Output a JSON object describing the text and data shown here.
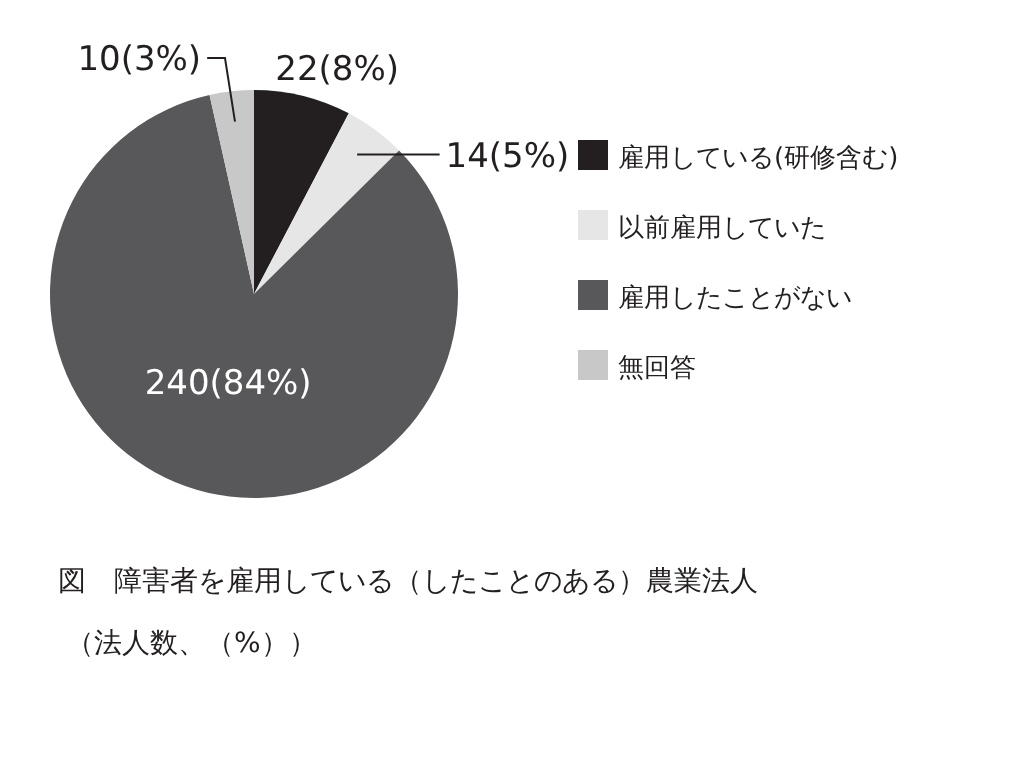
{
  "chart_data": {
    "type": "pie",
    "title": "図　障害者を雇用している（したことのある）農業法人",
    "subtitle": "（法人数、（%））",
    "categories": [
      "雇用している(研修含む)",
      "以前雇用していた",
      "雇用したことがない",
      "無回答"
    ],
    "values": [
      22,
      14,
      240,
      10
    ],
    "colors": [
      "#231f20",
      "#e6e6e6",
      "#58585a",
      "#c8c8c8"
    ],
    "value_labels": [
      "22(8%)",
      "14(5%)",
      "240(84%)",
      "10(3%)"
    ],
    "legend": "right"
  }
}
